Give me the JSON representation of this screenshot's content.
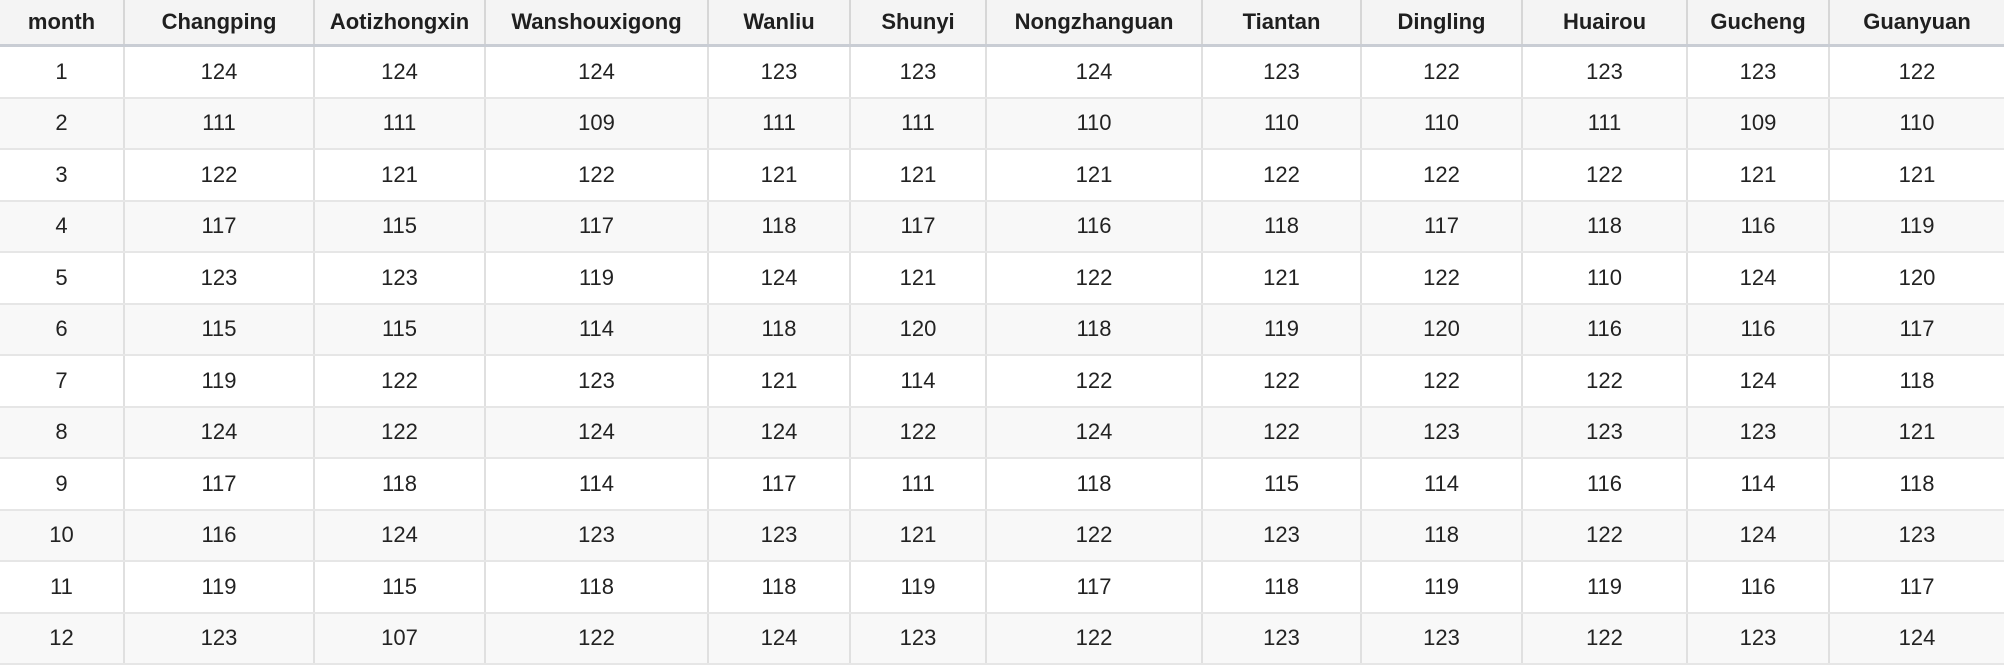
{
  "chart_data": {
    "type": "table",
    "columns": [
      "month",
      "Changping",
      "Aotizhongxin",
      "Wanshouxigong",
      "Wanliu",
      "Shunyi",
      "Nongzhanguan",
      "Tiantan",
      "Dingling",
      "Huairou",
      "Gucheng",
      "Guanyuan"
    ],
    "rows": [
      [
        "1",
        "124",
        "124",
        "124",
        "123",
        "123",
        "124",
        "123",
        "122",
        "123",
        "123",
        "122"
      ],
      [
        "2",
        "111",
        "111",
        "109",
        "111",
        "111",
        "110",
        "110",
        "110",
        "111",
        "109",
        "110"
      ],
      [
        "3",
        "122",
        "121",
        "122",
        "121",
        "121",
        "121",
        "122",
        "122",
        "122",
        "121",
        "121"
      ],
      [
        "4",
        "117",
        "115",
        "117",
        "118",
        "117",
        "116",
        "118",
        "117",
        "118",
        "116",
        "119"
      ],
      [
        "5",
        "123",
        "123",
        "119",
        "124",
        "121",
        "122",
        "121",
        "122",
        "110",
        "124",
        "120"
      ],
      [
        "6",
        "115",
        "115",
        "114",
        "118",
        "120",
        "118",
        "119",
        "120",
        "116",
        "116",
        "117"
      ],
      [
        "7",
        "119",
        "122",
        "123",
        "121",
        "114",
        "122",
        "122",
        "122",
        "122",
        "124",
        "118"
      ],
      [
        "8",
        "124",
        "122",
        "124",
        "124",
        "122",
        "124",
        "122",
        "123",
        "123",
        "123",
        "121"
      ],
      [
        "9",
        "117",
        "118",
        "114",
        "117",
        "111",
        "118",
        "115",
        "114",
        "116",
        "114",
        "118"
      ],
      [
        "10",
        "116",
        "124",
        "123",
        "123",
        "121",
        "122",
        "123",
        "118",
        "122",
        "124",
        "123"
      ],
      [
        "11",
        "119",
        "115",
        "118",
        "118",
        "119",
        "117",
        "118",
        "119",
        "119",
        "116",
        "117"
      ],
      [
        "12",
        "123",
        "107",
        "122",
        "124",
        "123",
        "122",
        "123",
        "123",
        "122",
        "123",
        "124"
      ]
    ]
  }
}
